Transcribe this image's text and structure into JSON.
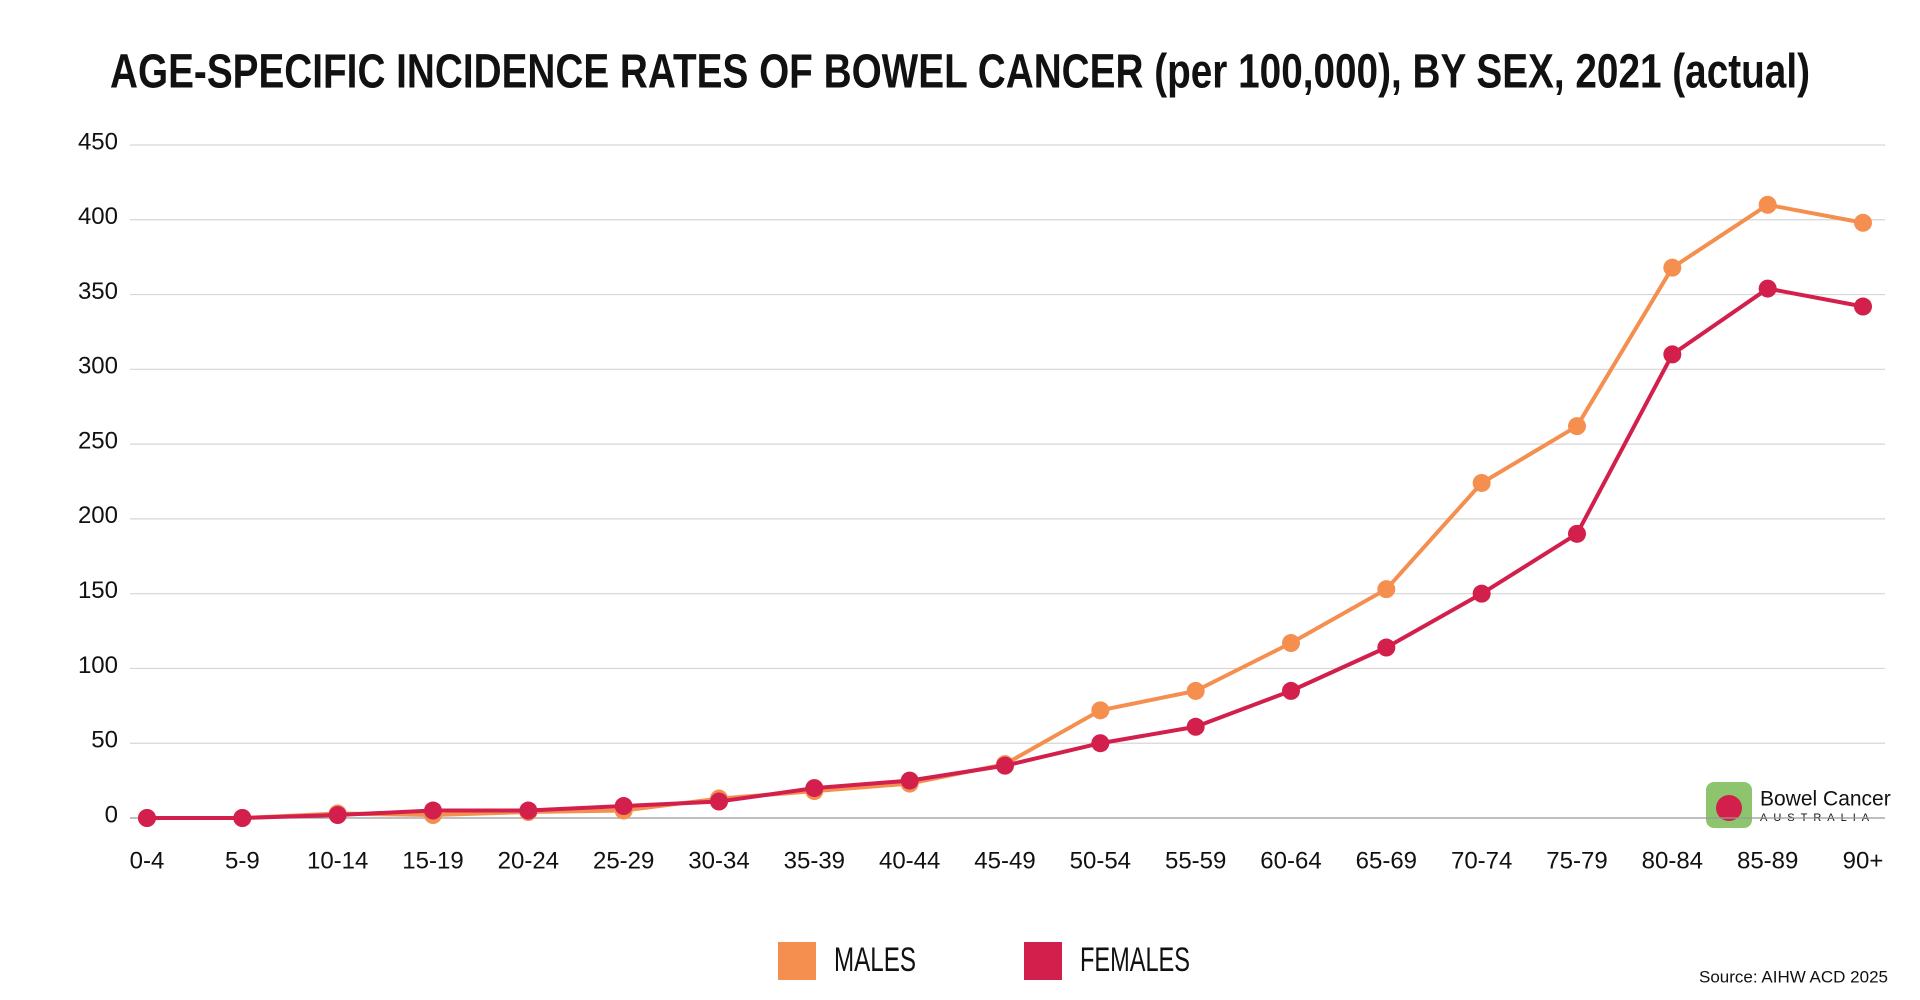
{
  "chart_data": {
    "type": "line",
    "title": "AGE-SPECIFIC INCIDENCE RATES OF BOWEL CANCER (per 100,000), BY SEX, 2021 (actual)",
    "categories": [
      "0-4",
      "5-9",
      "10-14",
      "15-19",
      "20-24",
      "25-29",
      "30-34",
      "35-39",
      "40-44",
      "45-49",
      "50-54",
      "55-59",
      "60-64",
      "65-69",
      "70-74",
      "75-79",
      "80-84",
      "85-89",
      "90+"
    ],
    "series": [
      {
        "name": "MALES",
        "color": "#f58f4f",
        "values": [
          0,
          0,
          3,
          2,
          4,
          5,
          13,
          18,
          23,
          36,
          72,
          85,
          117,
          153,
          224,
          262,
          368,
          410,
          398
        ]
      },
      {
        "name": "FEMALES",
        "color": "#d21f4b",
        "values": [
          0,
          0,
          2,
          5,
          5,
          8,
          11,
          20,
          25,
          35,
          50,
          61,
          85,
          114,
          150,
          190,
          310,
          354,
          342
        ]
      }
    ],
    "ylim": [
      0,
      450
    ],
    "yticks": [
      0,
      50,
      100,
      150,
      200,
      250,
      300,
      350,
      400,
      450
    ],
    "grid": true,
    "logo": {
      "name": "Bowel Cancer",
      "subtitle": "AUSTRALIA"
    },
    "source": "Source: AIHW ACD 2025"
  }
}
